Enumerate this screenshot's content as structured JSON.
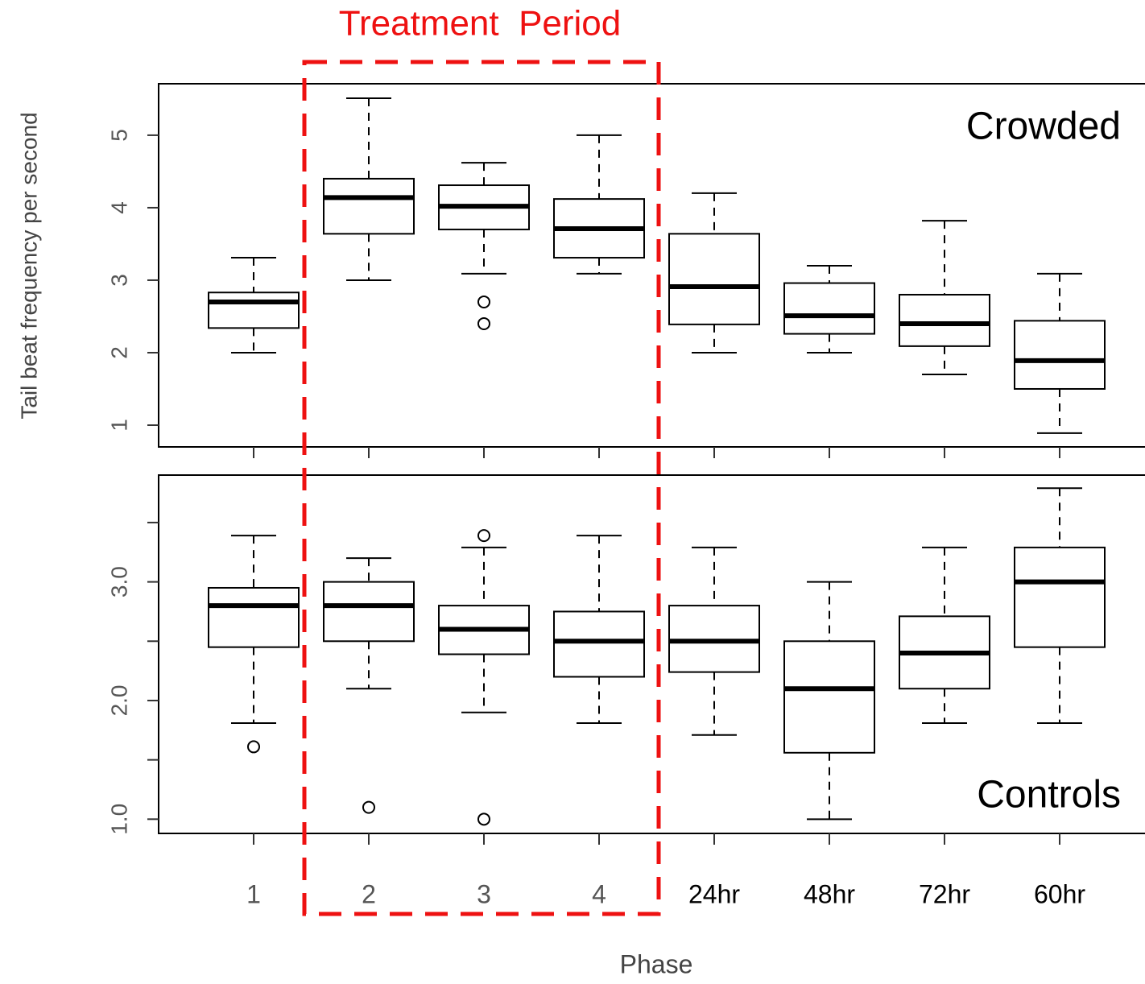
{
  "annotation": "Treatment  Period",
  "ylabel": "Tail beat frequency per second",
  "xlabel": "Phase",
  "chart_data": [
    {
      "type": "boxplot",
      "label": "Crowded",
      "ylim": [
        0.7,
        5.71
      ],
      "yticks": [
        1,
        2,
        3,
        4,
        5
      ],
      "boxes": [
        {
          "min": 2.0,
          "q1": 2.34,
          "median": 2.7,
          "q3": 2.83,
          "max": 3.31,
          "outliers": []
        },
        {
          "min": 3.0,
          "q1": 3.64,
          "median": 4.14,
          "q3": 4.4,
          "max": 5.51,
          "outliers": []
        },
        {
          "min": 3.09,
          "q1": 3.7,
          "median": 4.02,
          "q3": 4.31,
          "max": 4.62,
          "outliers": [
            2.7,
            2.4
          ]
        },
        {
          "min": 3.09,
          "q1": 3.31,
          "median": 3.71,
          "q3": 4.12,
          "max": 5.0,
          "outliers": []
        },
        {
          "min": 2.0,
          "q1": 2.39,
          "median": 2.91,
          "q3": 3.64,
          "max": 4.2,
          "outliers": []
        },
        {
          "min": 2.0,
          "q1": 2.26,
          "median": 2.51,
          "q3": 2.96,
          "max": 3.2,
          "outliers": []
        },
        {
          "min": 1.7,
          "q1": 2.09,
          "median": 2.4,
          "q3": 2.8,
          "max": 3.82,
          "outliers": []
        },
        {
          "min": 0.89,
          "q1": 1.5,
          "median": 1.89,
          "q3": 2.44,
          "max": 3.09,
          "outliers": []
        }
      ]
    },
    {
      "type": "boxplot",
      "label": "Controls",
      "categories": [
        "1",
        "2",
        "3",
        "4",
        "24hr",
        "48hr",
        "72hr",
        "60hr"
      ],
      "ylim": [
        0.88,
        3.9
      ],
      "yticks": [
        {
          "value": 1,
          "label": "1.0"
        },
        {
          "value": 1.5,
          "label": null
        },
        {
          "value": 2,
          "label": "2.0"
        },
        {
          "value": 2.5,
          "label": null
        },
        {
          "value": 3,
          "label": "3.0"
        },
        {
          "value": 3.5,
          "label": null
        }
      ],
      "boxes": [
        {
          "min": 1.81,
          "q1": 2.45,
          "median": 2.8,
          "q3": 2.95,
          "max": 3.39,
          "outliers": [
            1.61
          ]
        },
        {
          "min": 2.1,
          "q1": 2.5,
          "median": 2.8,
          "q3": 3.0,
          "max": 3.2,
          "outliers": [
            1.1
          ]
        },
        {
          "min": 1.9,
          "q1": 2.39,
          "median": 2.6,
          "q3": 2.8,
          "max": 3.29,
          "outliers": [
            3.39,
            1.0
          ]
        },
        {
          "min": 1.81,
          "q1": 2.2,
          "median": 2.5,
          "q3": 2.75,
          "max": 3.39,
          "outliers": []
        },
        {
          "min": 1.71,
          "q1": 2.24,
          "median": 2.5,
          "q3": 2.8,
          "max": 3.29,
          "outliers": []
        },
        {
          "min": 1.0,
          "q1": 1.56,
          "median": 2.1,
          "q3": 2.5,
          "max": 3.0,
          "outliers": []
        },
        {
          "min": 1.81,
          "q1": 2.1,
          "median": 2.4,
          "q3": 2.71,
          "max": 3.29,
          "outliers": []
        },
        {
          "min": 1.81,
          "q1": 2.45,
          "median": 3.0,
          "q3": 3.29,
          "max": 3.79,
          "outliers": []
        }
      ]
    }
  ]
}
